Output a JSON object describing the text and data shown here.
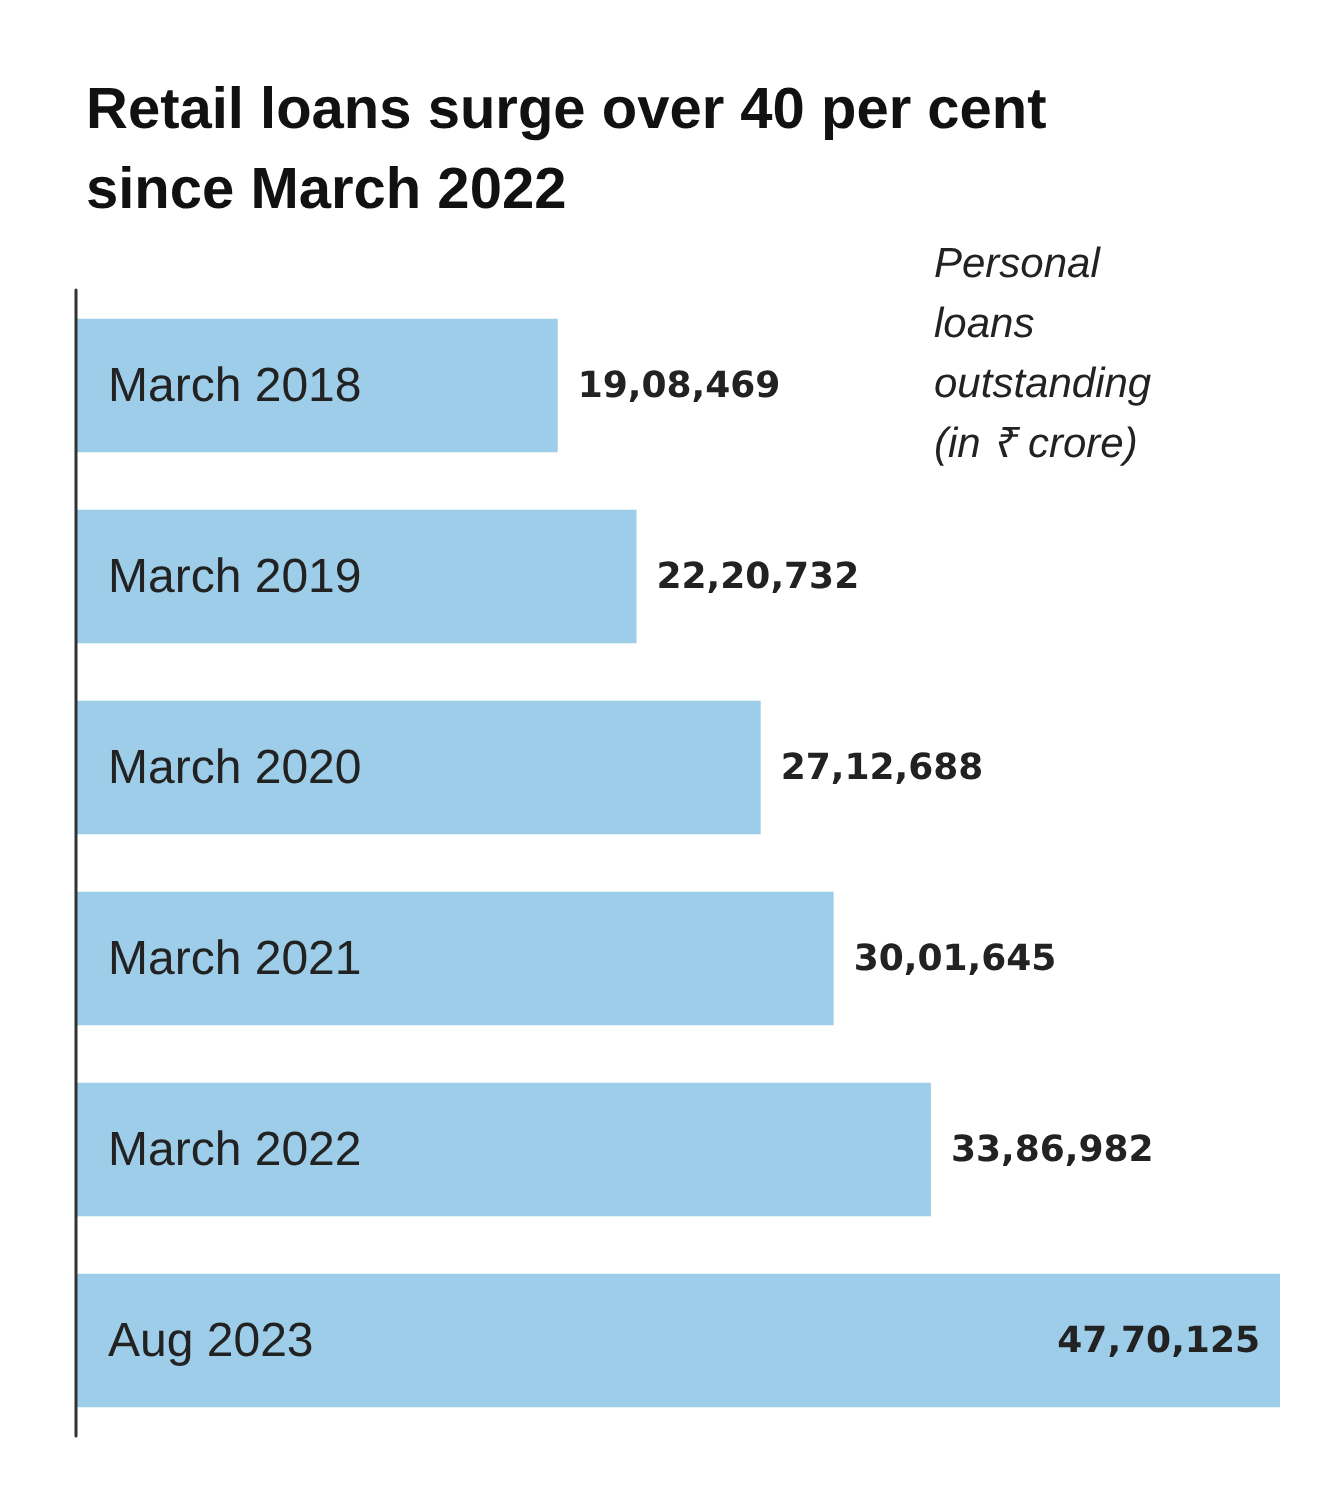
{
  "chart_data": {
    "type": "bar",
    "orientation": "horizontal",
    "title": "Retail loans surge over 40 per cent since March 2022",
    "subtitle": "Personal loans outstanding (in ₹ crore)",
    "categories": [
      "March 2018",
      "March 2019",
      "March 2020",
      "March 2021",
      "March 2022",
      "Aug 2023"
    ],
    "values": [
      1908469,
      2220732,
      2712688,
      3001645,
      3386982,
      4770125
    ],
    "value_labels": [
      "19,08,469",
      "22,20,732",
      "27,12,688",
      "30,01,645",
      "33,86,982",
      "47,70,125"
    ],
    "color": "#9dcde8",
    "xlim": [
      0,
      4770125
    ],
    "grid": false
  }
}
